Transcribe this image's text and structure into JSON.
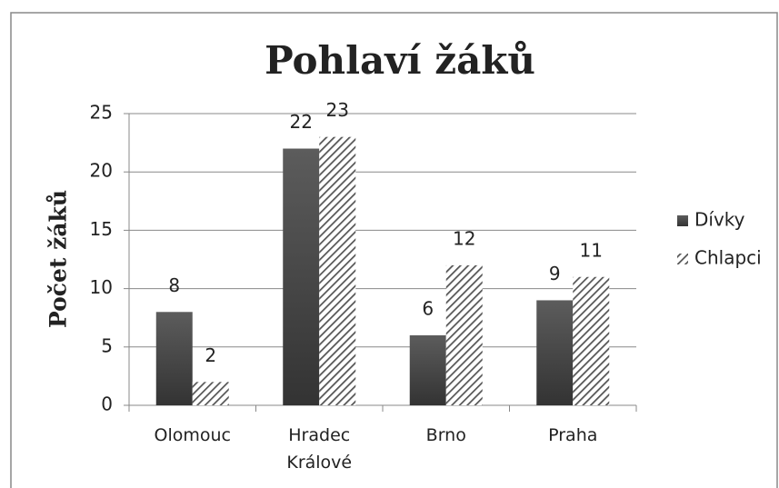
{
  "chart_data": {
    "type": "bar",
    "title": "Pohlaví žáků",
    "y_label": "Počet žáků",
    "categories": [
      "Olomouc",
      "Hradec Králové",
      "Brno",
      "Praha"
    ],
    "series": [
      {
        "name": "Dívky",
        "color": "#4a4a4a",
        "values": [
          8,
          22,
          6,
          9
        ]
      },
      {
        "name": "Chlapci",
        "color": "#555555",
        "values": [
          2,
          23,
          12,
          11
        ]
      }
    ],
    "ylim": [
      0,
      25
    ],
    "yticks": [
      0,
      5,
      10,
      15,
      20,
      25
    ],
    "grid": true,
    "legend": "right"
  }
}
